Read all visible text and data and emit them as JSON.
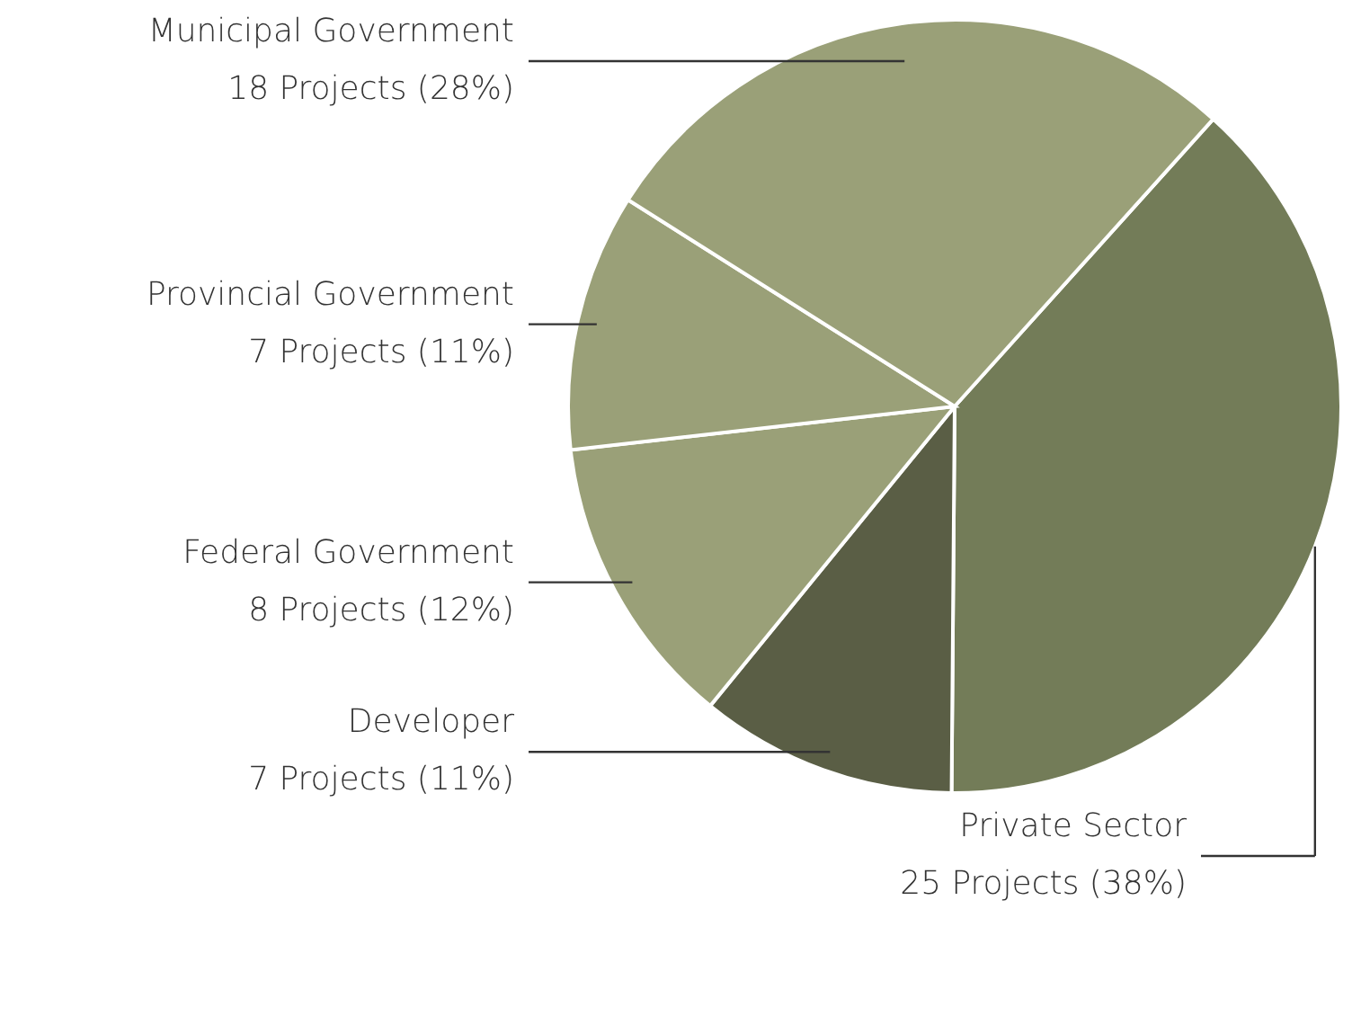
{
  "chart_data": {
    "type": "pie",
    "categories": [
      "Private Sector",
      "Developer",
      "Federal Government",
      "Provincial Government",
      "Municipal Government"
    ],
    "values": [
      25,
      7,
      8,
      7,
      18
    ],
    "value_labels": [
      "25 Projects (38%)",
      "7 Projects (11%)",
      "8 Projects (12%)",
      "7 Projects (11%)",
      "18 Projects (28%)"
    ],
    "colors": [
      "#737c58",
      "#5a5e45",
      "#9aa078",
      "#9aa078",
      "#9aa078"
    ]
  }
}
